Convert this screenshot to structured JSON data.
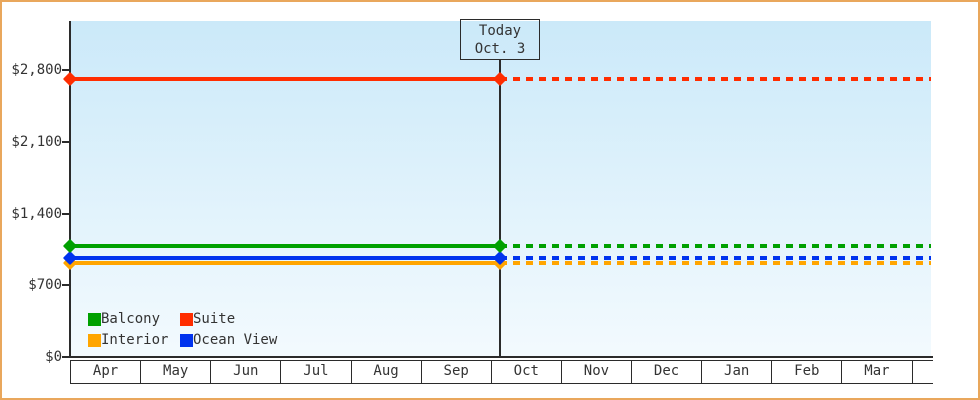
{
  "window": {
    "border_color": "#E9A75C",
    "background_color": "#FFFFFF",
    "plot_gradient_top": "#CBE9F9",
    "plot_gradient_bottom": "#F3FAFE"
  },
  "today_box": {
    "line1": "Today",
    "line2": "Oct. 3"
  },
  "legend": {
    "items": [
      {
        "label": "Balcony",
        "color": "#00A000"
      },
      {
        "label": "Suite",
        "color": "#FF2D00"
      },
      {
        "label": "Interior",
        "color": "#FFA500"
      },
      {
        "label": "Ocean View",
        "color": "#0033EE"
      }
    ]
  },
  "chart_data": {
    "type": "line",
    "title": "",
    "xlabel": "",
    "ylabel": "",
    "categories": [
      "Apr",
      "May",
      "Jun",
      "Jul",
      "Aug",
      "Sep",
      "Oct",
      "Nov",
      "Dec",
      "Jan",
      "Feb",
      "Mar"
    ],
    "series": [
      {
        "name": "Suite",
        "color": "#FF2D00",
        "value": 2710
      },
      {
        "name": "Balcony",
        "color": "#00A000",
        "value": 1080
      },
      {
        "name": "Ocean View",
        "color": "#0033EE",
        "value": 970
      },
      {
        "name": "Interior",
        "color": "#FFA500",
        "value": 920
      }
    ],
    "series_note": "Each series is a flat horizontal price line across all 12 months (values estimated from axis). Solid line with diamond markers before today; dotted projection after today.",
    "marker": "diamond",
    "today": {
      "label": [
        "Today",
        "Oct. 3"
      ],
      "month": "Oct",
      "month_index": 6,
      "day": 3
    },
    "yticks": [
      {
        "value": 2800,
        "label": "$2,800"
      },
      {
        "value": 2100,
        "label": "$2,100"
      },
      {
        "value": 1400,
        "label": "$1,400"
      },
      {
        "value": 700,
        "label": "$700"
      },
      {
        "value": 0,
        "label": "$0"
      }
    ],
    "ylim": [
      0,
      3280
    ],
    "grid": false,
    "legend_position": "bottom-left"
  }
}
